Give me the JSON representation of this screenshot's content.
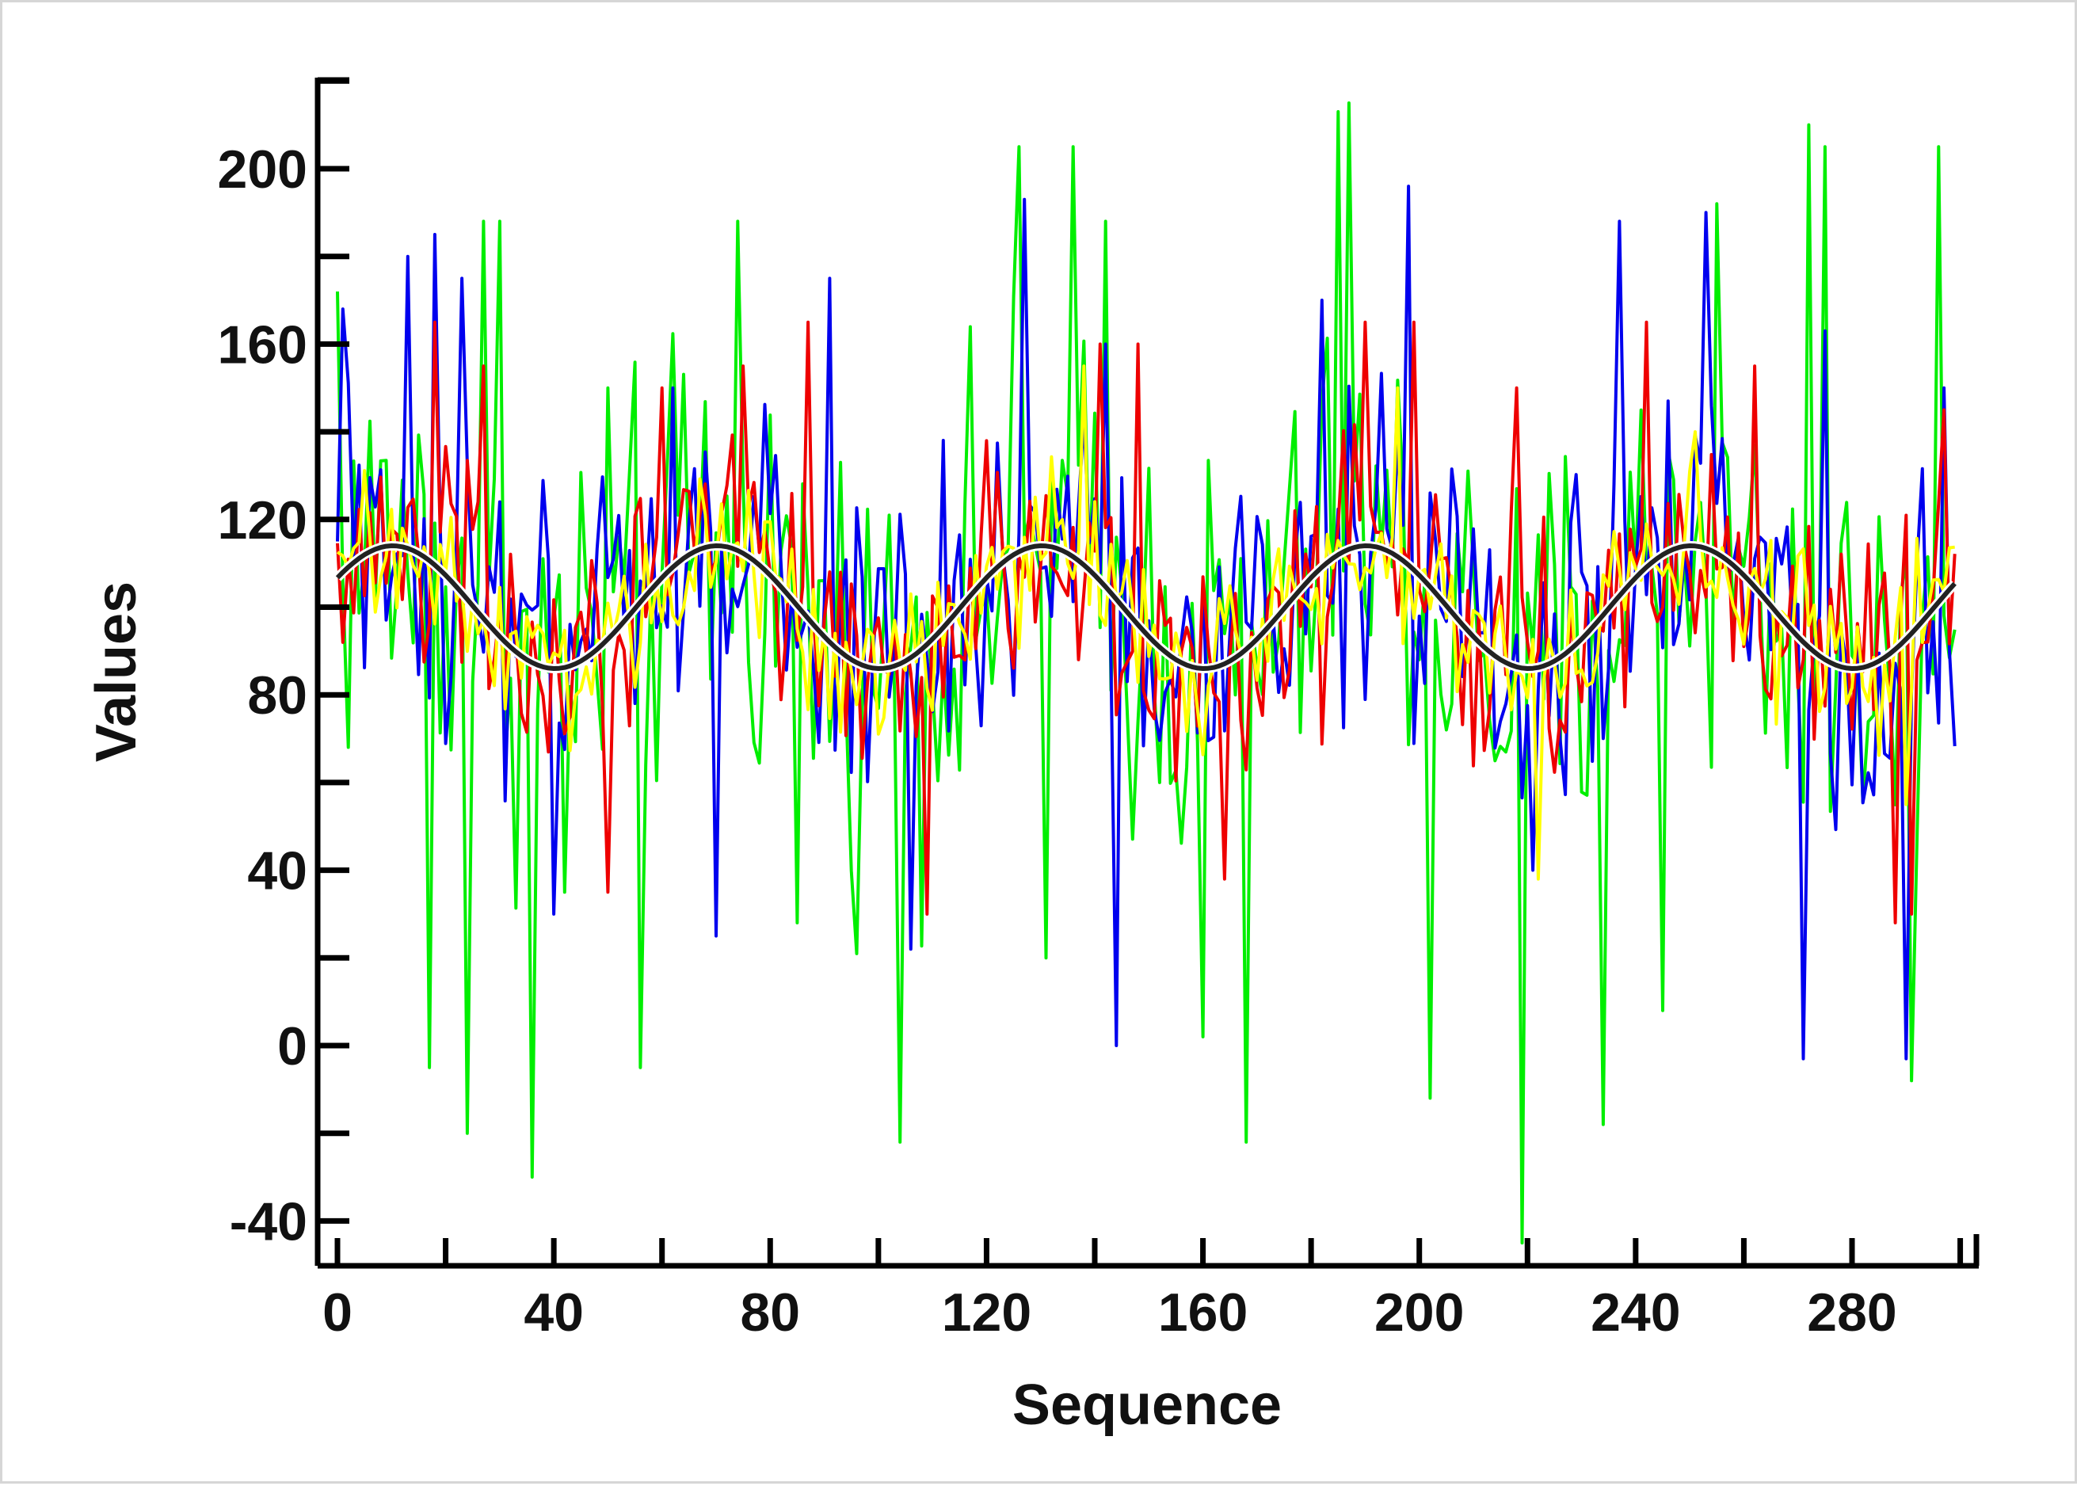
{
  "chart_data": {
    "type": "line",
    "title": "",
    "xlabel": "Sequence",
    "ylabel": "Values",
    "xlim": [
      -3,
      302
    ],
    "ylim": [
      -45,
      220
    ],
    "x_ticks": [
      0,
      40,
      80,
      120,
      160,
      200,
      240,
      280
    ],
    "x_tick_labels": [
      "0",
      "40",
      "80",
      "120",
      "160",
      "200",
      "240",
      "280"
    ],
    "x_minor_ticks": [
      20,
      60,
      100,
      140,
      180,
      220,
      260,
      300
    ],
    "y_ticks": [
      -40,
      0,
      40,
      80,
      120,
      160,
      200
    ],
    "y_tick_labels": [
      "-40",
      "0",
      "40",
      "80",
      "120",
      "160",
      "200"
    ],
    "y_minor_ticks": [
      -20,
      20,
      60,
      100,
      140,
      180,
      220
    ],
    "grid": false,
    "legend": "none",
    "x": {
      "start": 0,
      "end": 299,
      "step": 1
    },
    "series": [
      {
        "color": "#00ee00",
        "style": "noisy",
        "mean": 100,
        "amplitude": 60,
        "peaks": [
          [
            0,
            172
          ],
          [
            17,
            -5
          ],
          [
            24,
            -20
          ],
          [
            27,
            188
          ],
          [
            30,
            188
          ],
          [
            36,
            -30
          ],
          [
            42,
            35
          ],
          [
            50,
            150
          ],
          [
            56,
            -5
          ],
          [
            74,
            188
          ],
          [
            85,
            28
          ],
          [
            104,
            -22
          ],
          [
            126,
            205
          ],
          [
            131,
            20
          ],
          [
            136,
            205
          ],
          [
            142,
            188
          ],
          [
            152,
            60
          ],
          [
            160,
            2
          ],
          [
            168,
            -22
          ],
          [
            185,
            213
          ],
          [
            187,
            215
          ],
          [
            202,
            -12
          ],
          [
            219,
            -45
          ],
          [
            234,
            -18
          ],
          [
            245,
            8
          ],
          [
            255,
            192
          ],
          [
            272,
            210
          ],
          [
            275,
            205
          ],
          [
            291,
            -8
          ],
          [
            296,
            205
          ]
        ]
      },
      {
        "color": "#0000ee",
        "style": "noisy",
        "mean": 100,
        "amplitude": 45,
        "peaks": [
          [
            1,
            168
          ],
          [
            13,
            180
          ],
          [
            18,
            185
          ],
          [
            23,
            175
          ],
          [
            40,
            30
          ],
          [
            62,
            150
          ],
          [
            70,
            25
          ],
          [
            91,
            175
          ],
          [
            106,
            22
          ],
          [
            127,
            193
          ],
          [
            142,
            160
          ],
          [
            144,
            0
          ],
          [
            182,
            170
          ],
          [
            198,
            196
          ],
          [
            221,
            40
          ],
          [
            237,
            188
          ],
          [
            253,
            190
          ],
          [
            271,
            -3
          ],
          [
            275,
            163
          ],
          [
            290,
            -3
          ],
          [
            297,
            150
          ]
        ]
      },
      {
        "color": "#ee0000",
        "style": "noisy",
        "mean": 100,
        "amplitude": 35,
        "peaks": [
          [
            18,
            165
          ],
          [
            27,
            155
          ],
          [
            50,
            35
          ],
          [
            60,
            150
          ],
          [
            75,
            155
          ],
          [
            87,
            165
          ],
          [
            109,
            30
          ],
          [
            141,
            160
          ],
          [
            148,
            160
          ],
          [
            164,
            38
          ],
          [
            190,
            165
          ],
          [
            199,
            165
          ],
          [
            218,
            150
          ],
          [
            242,
            165
          ],
          [
            262,
            155
          ],
          [
            288,
            28
          ],
          [
            291,
            30
          ],
          [
            297,
            145
          ]
        ]
      },
      {
        "color": "#ffff00",
        "style": "noisy",
        "mean": 100,
        "amplitude": 22,
        "peaks": [
          [
            138,
            155
          ],
          [
            196,
            150
          ],
          [
            222,
            38
          ],
          [
            251,
            140
          ],
          [
            290,
            55
          ]
        ]
      },
      {
        "color": "#222222",
        "style": "smooth",
        "mean": 100,
        "amplitude": 14,
        "period": 60,
        "phase_x": 0
      }
    ]
  }
}
